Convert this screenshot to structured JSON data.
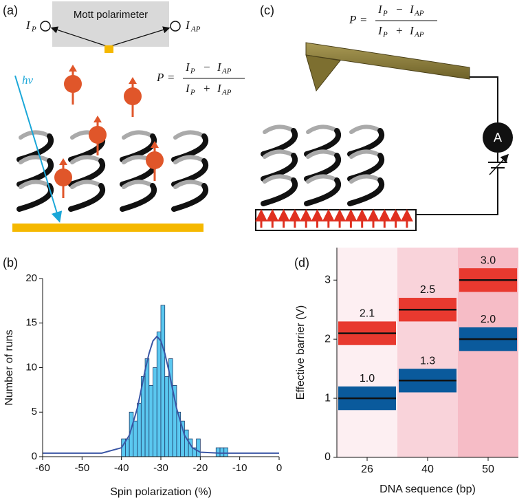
{
  "panel_a": {
    "label": "(a)",
    "instrument": "Mott polarimeter",
    "detector_left": {
      "base": "I",
      "sub": "P"
    },
    "detector_right": {
      "base": "I",
      "sub": "AP"
    },
    "photon": "hv",
    "formula": {
      "lhs": "P",
      "eq": "=",
      "symbol": "I",
      "sub_p": "P",
      "sub_ap": "AP",
      "minus": "−",
      "plus": "+"
    }
  },
  "panel_c": {
    "label": "(c)",
    "meter": "A",
    "formula": {
      "lhs": "P",
      "eq": "=",
      "symbol": "I",
      "sub_p": "P",
      "sub_ap": "AP",
      "minus": "−",
      "plus": "+"
    }
  },
  "chart_data": [
    {
      "type": "histogram",
      "label": "(b)",
      "xlabel": "Spin polarization (%)",
      "ylabel": "Number of runs",
      "bins": [
        -40,
        -39,
        -38,
        -37,
        -36,
        -35,
        -34,
        -33,
        -32,
        -31,
        -30,
        -29,
        -28,
        -27,
        -26,
        -25,
        -24,
        -23,
        -22,
        -21,
        -20,
        -19,
        -18,
        -17,
        -16,
        -15,
        -14,
        -13
      ],
      "values": [
        2,
        2,
        5,
        4,
        6,
        9,
        11,
        8,
        10,
        14,
        17,
        9,
        11,
        8,
        5,
        4,
        3,
        2,
        1,
        2,
        0,
        0,
        0,
        0,
        1,
        1,
        1
      ],
      "color": "#5bc8f0",
      "edgecolor": "#1f3d6b",
      "fit": {
        "x": [
          -60,
          -45,
          -40,
          -38,
          -36,
          -35,
          -34,
          -33,
          -32,
          -31,
          -30,
          -29,
          -28,
          -27,
          -26,
          -24,
          -22,
          -20,
          -15,
          0
        ],
        "values": [
          0.4,
          0.4,
          1.0,
          2.4,
          5.4,
          7.5,
          9.7,
          11.6,
          13.0,
          13.5,
          13.0,
          11.6,
          9.7,
          7.5,
          5.4,
          2.4,
          1.0,
          0.5,
          0.4,
          0.4
        ],
        "color": "#3a56a5"
      },
      "xlim": [
        -60,
        0
      ],
      "xticks": [
        -60,
        -50,
        -40,
        -30,
        -20,
        -10,
        0
      ],
      "ylim": [
        0,
        20
      ],
      "yticks": [
        0,
        5,
        10,
        15,
        20
      ]
    },
    {
      "type": "errorbox",
      "label": "(d)",
      "xlabel": "DNA sequence (bp)",
      "ylabel": "Effective barrier (V)",
      "categories": [
        "26",
        "40",
        "50"
      ],
      "category_colors": [
        "#fdeff2",
        "#f9d3da",
        "#f6bcc6"
      ],
      "series": [
        {
          "color": "#e8392f",
          "values": [
            2.1,
            2.5,
            3.0
          ],
          "value_labels": [
            "2.1",
            "2.5",
            "3.0"
          ],
          "errors": [
            0.2,
            0.2,
            0.2
          ]
        },
        {
          "color": "#0a5a9c",
          "values": [
            1.0,
            1.3,
            2.0
          ],
          "value_labels": [
            "1.0",
            "1.3",
            "2.0"
          ],
          "errors": [
            0.2,
            0.2,
            0.2
          ]
        }
      ],
      "ylim": [
        0,
        3.55
      ],
      "yticks": [
        0,
        1,
        2,
        3
      ]
    }
  ]
}
